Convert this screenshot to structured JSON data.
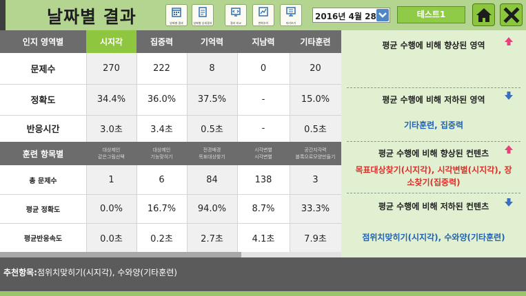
{
  "header": {
    "title": "날짜별 결과",
    "tools": [
      {
        "icon": "calendar-icon",
        "label": "날짜별 결과"
      },
      {
        "icon": "document-icon",
        "label": "날짜별 상세결과"
      },
      {
        "icon": "compare-icon",
        "label": "결과 비교"
      },
      {
        "icon": "trend-chart-icon",
        "label": "변화추이"
      },
      {
        "icon": "monitor-icon",
        "label": "미리보기"
      }
    ],
    "date": "2016년 4월 28일",
    "user": "테스트1"
  },
  "cognitive_table": {
    "header_label": "인지 영역별",
    "columns": [
      "시지각",
      "집중력",
      "기억력",
      "지남력",
      "기타훈련"
    ],
    "rows": [
      {
        "label": "문제수",
        "values": [
          "270",
          "222",
          "8",
          "0",
          "20"
        ]
      },
      {
        "label": "정확도",
        "values": [
          "34.4%",
          "36.0%",
          "37.5%",
          "-",
          "15.0%"
        ]
      },
      {
        "label": "반응시간",
        "values": [
          "3.0초",
          "3.4초",
          "0.5초",
          "-",
          "0.5초"
        ]
      }
    ]
  },
  "training_table": {
    "header_label": "훈련 항목별",
    "columns": [
      {
        "line1": "대상제인",
        "line2": "같은그림선택"
      },
      {
        "line1": "대상제인",
        "line2": "기능맞히기"
      },
      {
        "line1": "전경배경",
        "line2": "목표대상찾기"
      },
      {
        "line1": "시각변별",
        "line2": "시각변별"
      },
      {
        "line1": "공간지각력",
        "line2": "블록으로모양만들기"
      }
    ],
    "rows": [
      {
        "label": "총 문제수",
        "values": [
          "1",
          "6",
          "84",
          "138",
          "3"
        ]
      },
      {
        "label": "평균 정확도",
        "values": [
          "0.0%",
          "16.7%",
          "94.0%",
          "8.7%",
          "33.3%"
        ]
      },
      {
        "label": "평균반응속도",
        "values": [
          "0.0초",
          "0.2초",
          "2.7초",
          "4.1초",
          "7.9초"
        ]
      }
    ]
  },
  "panel": {
    "improved_area_title": "평균 수행에 비해 향상된 영역",
    "improved_area_text": "",
    "declined_area_title": "평균 수행에 비해 저하된 영역",
    "declined_area_text": "기타훈련, 집중력",
    "improved_content_title": "평균 수행에 비해 향상된 컨텐츠",
    "improved_content_line1": "목표대상찾기(시지각), 시각변별(시지각), 장",
    "improved_content_line2": "소찾기(집중력)",
    "declined_content_title": "평균 수행에 비해 저하된 컨텐츠",
    "declined_content_text": "점위치맞히기(시지각), 수와양(기타훈련)"
  },
  "recommendation": {
    "label": "추천항목:",
    "text": "점위치맞히기(시지각), 수와양(기타훈련)"
  },
  "colors": {
    "header_bg": "#b4d590",
    "highlight_green": "#8ec63f",
    "table_header_gray": "#6c6c6c",
    "panel_bg": "#e1f0d1",
    "blue_text": "#2062b4",
    "red_text": "#d9312c",
    "up_arrow": "#e8407a",
    "down_arrow": "#3a6fc0"
  }
}
